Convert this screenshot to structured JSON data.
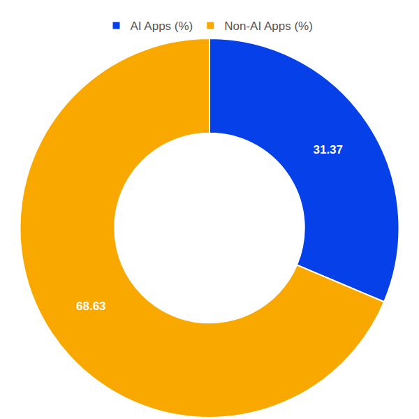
{
  "chart_data": {
    "type": "donut",
    "categories": [
      "AI Apps (%)",
      "Non-AI Apps (%)"
    ],
    "values": [
      31.37,
      68.63
    ],
    "colors": [
      "#0540e8",
      "#f9a800"
    ],
    "data_labels": true,
    "legend": "top"
  }
}
